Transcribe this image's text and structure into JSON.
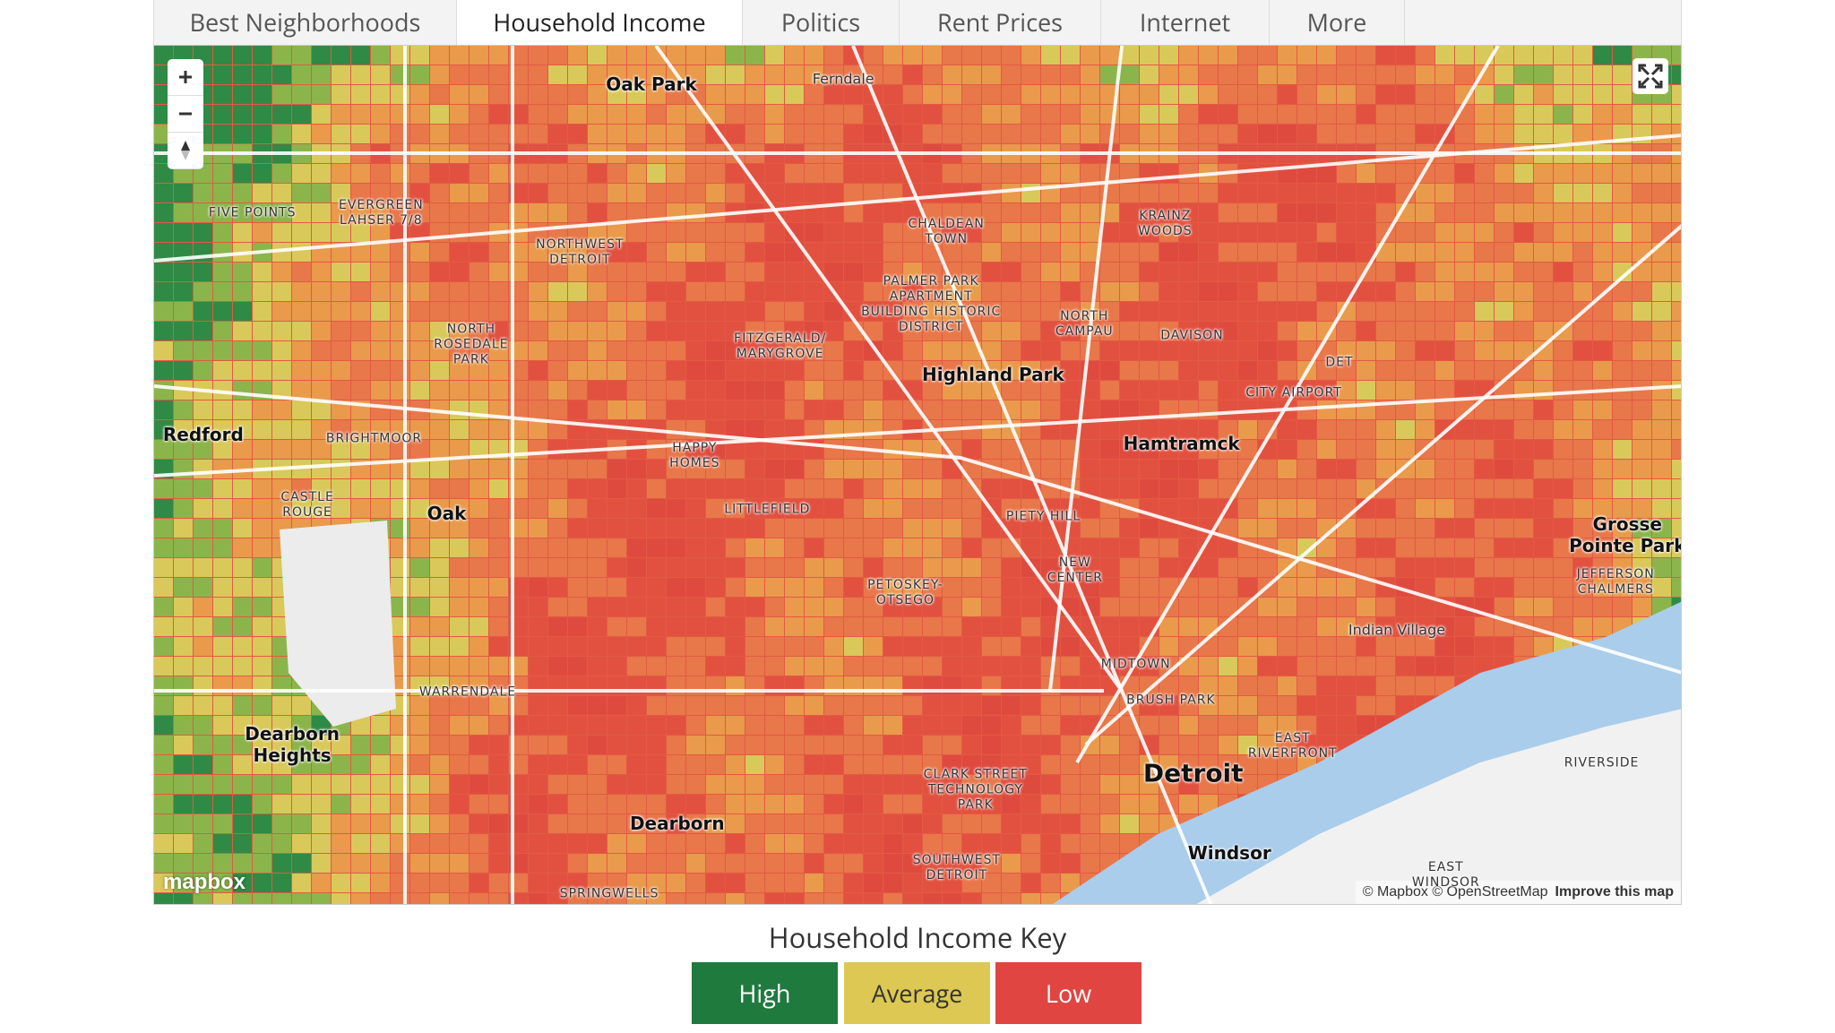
{
  "tabs": [
    "Best Neighborhoods",
    "Household Income",
    "Politics",
    "Rent Prices",
    "Internet",
    "More"
  ],
  "active_tab": "Household Income",
  "map": {
    "labels": [
      {
        "lines": [
          "Oak Park"
        ]
      },
      {
        "lines": [
          "Ferndale"
        ]
      },
      {
        "lines": [
          "FIVE POINTS"
        ]
      },
      {
        "lines": [
          "EVERGREEN",
          "LAHSER 7/8"
        ]
      },
      {
        "lines": [
          "NORTHWEST",
          "DETROIT"
        ]
      },
      {
        "lines": [
          "CHALDEAN",
          "TOWN"
        ]
      },
      {
        "lines": [
          "KRAINZ",
          "WOODS"
        ]
      },
      {
        "lines": [
          "PALMER PARK",
          "APARTMENT",
          "BUILDING HISTORIC",
          "DISTRICT"
        ]
      },
      {
        "lines": [
          "NORTH",
          "CAMPAU"
        ]
      },
      {
        "lines": [
          "DAVISON"
        ]
      },
      {
        "lines": [
          "DET"
        ]
      },
      {
        "lines": [
          "CITY AIRPORT"
        ]
      },
      {
        "lines": [
          "NORTH",
          "ROSEDALE",
          "PARK"
        ]
      },
      {
        "lines": [
          "FITZGERALD/",
          "MARYGROVE"
        ]
      },
      {
        "lines": [
          "Highland Park"
        ]
      },
      {
        "lines": [
          "Redford"
        ]
      },
      {
        "lines": [
          "BRIGHTMOOR"
        ]
      },
      {
        "lines": [
          "Hamtramck"
        ]
      },
      {
        "lines": [
          "HAPPY",
          "HOMES"
        ]
      },
      {
        "lines": [
          "CASTLE",
          "ROUGE"
        ]
      },
      {
        "lines": [
          "Oak"
        ]
      },
      {
        "lines": [
          "LITTLEFIELD"
        ]
      },
      {
        "lines": [
          "PIETY HILL"
        ]
      },
      {
        "lines": [
          "Grosse",
          "Pointe Park"
        ]
      },
      {
        "lines": [
          "NEW",
          "CENTER"
        ]
      },
      {
        "lines": [
          "PETOSKEY-",
          "OTSEGO"
        ]
      },
      {
        "lines": [
          "JEFFERSON",
          "CHALMERS"
        ]
      },
      {
        "lines": [
          "Indian Village"
        ]
      },
      {
        "lines": [
          "MIDTOWN"
        ]
      },
      {
        "lines": [
          "WARRENDALE"
        ]
      },
      {
        "lines": [
          "BRUSH PARK"
        ]
      },
      {
        "lines": [
          "EAST",
          "RIVERFRONT"
        ]
      },
      {
        "lines": [
          "Dearborn",
          "Heights"
        ]
      },
      {
        "lines": [
          "Detroit"
        ]
      },
      {
        "lines": [
          "RIVERSIDE"
        ]
      },
      {
        "lines": [
          "CLARK STREET",
          "TECHNOLOGY",
          "PARK"
        ]
      },
      {
        "lines": [
          "Dearborn"
        ]
      },
      {
        "lines": [
          "Windsor"
        ]
      },
      {
        "lines": [
          "SOUTHWEST",
          "DETROIT"
        ]
      },
      {
        "lines": [
          "EAST",
          "WINDSOR"
        ]
      },
      {
        "lines": [
          "SPRINGWELLS"
        ]
      }
    ],
    "logo": "mapbox",
    "attribution": "© Mapbox © OpenStreetMap",
    "improve": "Improve this map"
  },
  "key": {
    "title": "Household Income Key",
    "items": [
      {
        "label": "High",
        "color": "#1f7a3e"
      },
      {
        "label": "Average",
        "color": "#dcc853"
      },
      {
        "label": "Low",
        "color": "#e04541"
      }
    ]
  }
}
